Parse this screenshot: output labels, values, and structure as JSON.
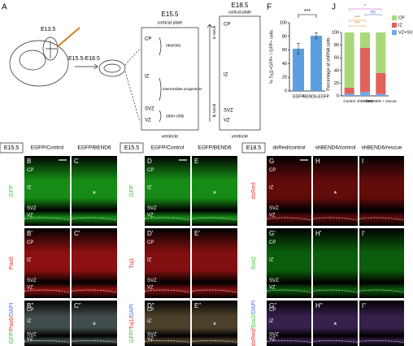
{
  "schematic": {
    "label": "A",
    "embryo_stage": "E13.5",
    "harvest_stage": "E15.5-E18.5",
    "left_box": {
      "title": "E15.5",
      "top": "cortical plate",
      "bottom": "ventricle",
      "layers": [
        "CP",
        "IZ",
        "SVZ",
        "VZ"
      ],
      "cells": [
        "neurons",
        "intermediate progenitors",
        "stem cells"
      ]
    },
    "notch": [
      "lo Notch",
      "hi Notch"
    ],
    "right_box": {
      "title": "E18.5",
      "top": "cortical plate",
      "bottom": "ventricle",
      "layers": [
        "CP",
        "IZ",
        "SVZ",
        "VZ"
      ]
    }
  },
  "panel_f": {
    "type": "bar",
    "label": "F",
    "y_label": "% Tuj1+GFP+ / GFP+ cells",
    "categories": [
      "EGFP",
      "BEND6-EGFP"
    ],
    "values": [
      62,
      81
    ],
    "errors": [
      8,
      4
    ],
    "color": "#5aa0e0",
    "ylim": [
      0,
      100
    ],
    "yticks": [
      0,
      20,
      40,
      60,
      80,
      100
    ],
    "significance": "***"
  },
  "panel_j": {
    "type": "stacked-bar",
    "label": "J",
    "y_label": "Percentage of shRNA cells",
    "categories": [
      "Control",
      "shBEND6",
      "shBEND6 + rescue"
    ],
    "series": [
      {
        "name": "VZ+SVZ",
        "color": "#6fa8e8",
        "values": [
          3,
          6,
          3
        ]
      },
      {
        "name": "IZ",
        "color": "#e0625a",
        "values": [
          10,
          70,
          33
        ]
      },
      {
        "name": "CP",
        "color": "#a8d878",
        "values": [
          87,
          24,
          64
        ]
      }
    ],
    "ylim": [
      0,
      100
    ],
    "yticks": [
      0,
      20,
      40,
      60,
      80,
      100
    ],
    "annotations": [
      {
        "text": "*",
        "color": "#c040c0"
      },
      {
        "text": "ns",
        "color": "#3070d0"
      },
      {
        "text": "***",
        "color": "#e08020"
      },
      {
        "text": "***",
        "color": "#e08020"
      }
    ]
  },
  "groups": [
    {
      "stage": "E15.5",
      "columns": [
        "EGFP/Control",
        "EGFP/BEND6"
      ],
      "layers": [
        "CP",
        "IZ",
        "SVZ",
        "VZ"
      ],
      "rows": [
        {
          "labels": [
            "B",
            "C"
          ],
          "stain": [
            {
              "text": "GFP",
              "color": "#30c030"
            }
          ],
          "color": "#20d020",
          "stars": [
            null,
            "*"
          ]
        },
        {
          "labels": [
            "B'",
            "C'"
          ],
          "stain": [
            {
              "text": "Pax6",
              "color": "#e03030"
            }
          ],
          "color": "#d01818",
          "stars": [
            null,
            null
          ]
        },
        {
          "labels": [
            "B''",
            "C''"
          ],
          "stain": [
            {
              "text": "GFP/",
              "color": "#30c030"
            },
            {
              "text": "Pax6/",
              "color": "#e03030"
            },
            {
              "text": "DAPI",
              "color": "#5060ff"
            }
          ],
          "color": "#607070",
          "stars": [
            null,
            "*"
          ]
        }
      ]
    },
    {
      "stage": "E15.5",
      "columns": [
        "EGFP/Control",
        "EGFP/BEND6"
      ],
      "layers": [
        "CP",
        "IZ",
        "SVZ",
        "VZ"
      ],
      "rows": [
        {
          "labels": [
            "D",
            "E"
          ],
          "stain": [
            {
              "text": "GFP",
              "color": "#30c030"
            }
          ],
          "color": "#20d020",
          "stars": [
            null,
            "*"
          ]
        },
        {
          "labels": [
            "D'",
            "E'"
          ],
          "stain": [
            {
              "text": "Tuj1",
              "color": "#e03030"
            }
          ],
          "color": "#c01818",
          "stars": [
            null,
            null
          ]
        },
        {
          "labels": [
            "D''",
            "E''"
          ],
          "stain": [
            {
              "text": "GFP/",
              "color": "#30c030"
            },
            {
              "text": "Tuj1/",
              "color": "#e03030"
            },
            {
              "text": "DAPI",
              "color": "#5060ff"
            }
          ],
          "color": "#706040",
          "stars": [
            null,
            "*"
          ]
        }
      ]
    },
    {
      "stage": "E18.5",
      "columns": [
        "dsRed/control",
        "shBEND6/control",
        "shBEND6/rescue"
      ],
      "layers": [
        "CP",
        "IZ",
        "SVZ",
        "VZ"
      ],
      "rows": [
        {
          "labels": [
            "G",
            "H",
            "I"
          ],
          "stain": [
            {
              "text": "dsRed",
              "color": "#e03030"
            }
          ],
          "color": "#901010",
          "stars": [
            null,
            "*",
            null
          ]
        },
        {
          "labels": [
            "G'",
            "H'",
            "I'"
          ],
          "stain": [
            {
              "text": "Sox2",
              "color": "#30c030"
            }
          ],
          "color": "#108a10",
          "stars": [
            null,
            null,
            null
          ]
        },
        {
          "labels": [
            "G''",
            "H''",
            "I''"
          ],
          "stain": [
            {
              "text": "dsRed/",
              "color": "#e03030"
            },
            {
              "text": "Sox2/",
              "color": "#30c030"
            },
            {
              "text": "DAPI",
              "color": "#5060ff"
            }
          ],
          "color": "#503070",
          "stars": [
            null,
            "*",
            null
          ]
        }
      ]
    }
  ]
}
